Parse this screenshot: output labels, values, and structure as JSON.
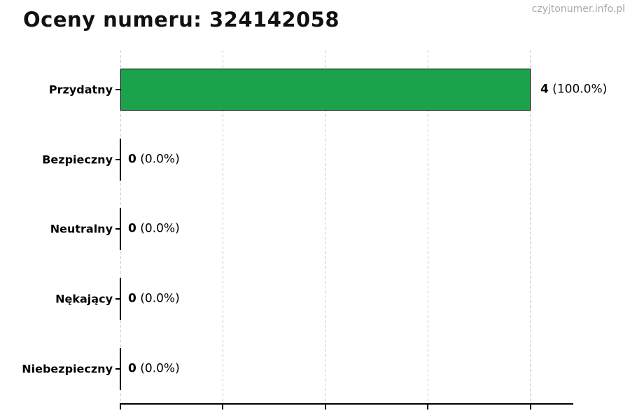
{
  "title": "Oceny numeru: 324142058",
  "watermark": "czyjtonumer.info.pl",
  "chart_data": {
    "type": "bar",
    "orientation": "horizontal",
    "title": "Oceny numeru: 324142058",
    "categories": [
      "Przydatny",
      "Bezpieczny",
      "Neutralny",
      "Nękający",
      "Niebezpieczny"
    ],
    "values": [
      4,
      0,
      0,
      0,
      0
    ],
    "percentages": [
      100.0,
      0.0,
      0.0,
      0.0,
      0.0
    ],
    "value_labels": [
      {
        "num": "4",
        "pct": "(100.0%)"
      },
      {
        "num": "0",
        "pct": "(0.0%)"
      },
      {
        "num": "0",
        "pct": "(0.0%)"
      },
      {
        "num": "0",
        "pct": "(0.0%)"
      },
      {
        "num": "0",
        "pct": "(0.0%)"
      }
    ],
    "xlim": [
      0,
      4.41
    ],
    "x_ticks": [
      0,
      1,
      2,
      3,
      4
    ],
    "x_tick_labels_visible": false,
    "grid": true,
    "legend": false,
    "colors": {
      "bar_fill": "#1aa34a",
      "bar_edge": "#000000",
      "gridline": "#cccccc",
      "axis": "#000000",
      "title_text": "#111111",
      "watermark_text": "#a9a9a9"
    }
  }
}
